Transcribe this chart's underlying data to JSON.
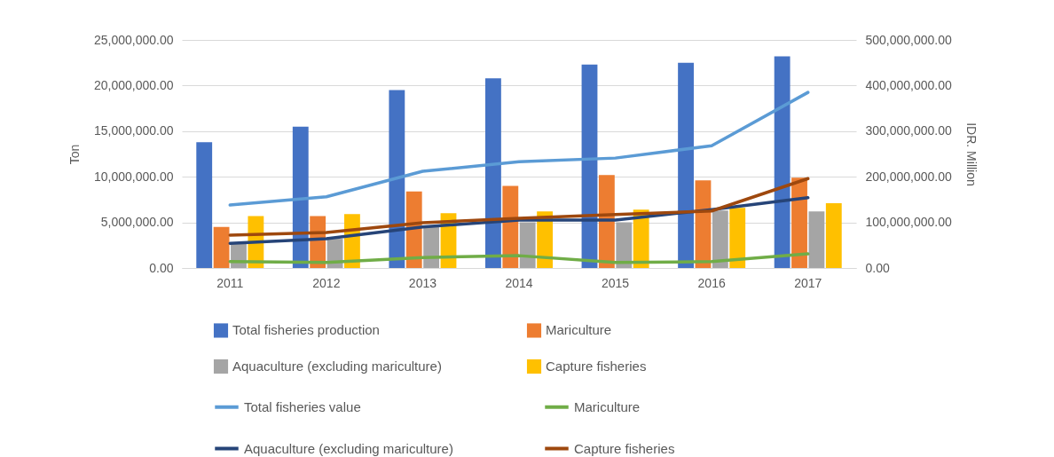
{
  "chart_data": {
    "type": "bar",
    "ylabel": "Ton",
    "y2label": "IDR. Million",
    "categories": [
      "2011",
      "2012",
      "2013",
      "2014",
      "2015",
      "2016",
      "2017"
    ],
    "series": [
      {
        "name": "Total fisheries production",
        "color": "#4472c4",
        "values": [
          13800000,
          15500000,
          19500000,
          20800000,
          22300000,
          22500000,
          23200000
        ]
      },
      {
        "name": "Mariculture",
        "color": "#ed7d31",
        "values": [
          4500000,
          5700000,
          8400000,
          9000000,
          10200000,
          9600000,
          9900000
        ]
      },
      {
        "name": "Aquaculture (excluding mariculture)",
        "color": "#a5a5a5",
        "values": [
          2700000,
          3200000,
          4600000,
          5000000,
          5000000,
          6300000,
          6200000
        ]
      },
      {
        "name": "Capture fisheries",
        "color": "#ffc000",
        "values": [
          5700000,
          5900000,
          6000000,
          6200000,
          6400000,
          6600000,
          7100000
        ]
      },
      {
        "name": "Total fisheries value",
        "type": "line",
        "axis": "y2",
        "color": "#5b9bd5",
        "values": [
          138000000,
          156000000,
          212000000,
          233000000,
          241000000,
          268000000,
          385000000
        ]
      },
      {
        "name": "Mariculture",
        "type": "line",
        "axis": "y2",
        "color": "#70ad47",
        "values": [
          14000000,
          12000000,
          23000000,
          27000000,
          12000000,
          14000000,
          31000000
        ]
      },
      {
        "name": "Aquaculture (excluding mariculture)",
        "type": "line",
        "axis": "y2",
        "color": "#264478",
        "values": [
          54000000,
          64000000,
          90000000,
          105000000,
          105000000,
          128000000,
          154000000
        ]
      },
      {
        "name": "Capture fisheries",
        "type": "line",
        "axis": "y2",
        "color": "#9e480e",
        "values": [
          72000000,
          78000000,
          99000000,
          109000000,
          117000000,
          125000000,
          196000000
        ]
      }
    ],
    "ylim": [
      0,
      25000000
    ],
    "yticks": [
      {
        "value": 0,
        "label": "0.00"
      },
      {
        "value": 5000000,
        "label": "5,000,000.00"
      },
      {
        "value": 10000000,
        "label": "10,000,000.00"
      },
      {
        "value": 15000000,
        "label": "15,000,000.00"
      },
      {
        "value": 20000000,
        "label": "20,000,000.00"
      },
      {
        "value": 25000000,
        "label": "25,000,000.00"
      }
    ],
    "y2lim": [
      0,
      500000000
    ],
    "y2ticks": [
      {
        "value": 0,
        "label": "0.00"
      },
      {
        "value": 100000000,
        "label": "100,000,000.00"
      },
      {
        "value": 200000000,
        "label": "200,000,000.00"
      },
      {
        "value": 300000000,
        "label": "300,000,000.00"
      },
      {
        "value": 400000000,
        "label": "400,000,000.00"
      },
      {
        "value": 500000000,
        "label": "500,000,000.00"
      }
    ],
    "grid": "y",
    "legend": "bottom"
  }
}
